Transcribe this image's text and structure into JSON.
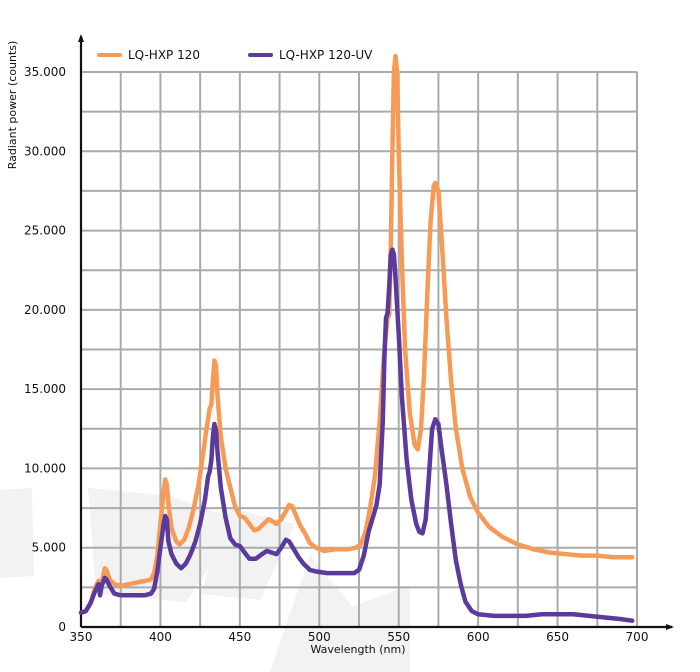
{
  "chart_data": {
    "type": "line",
    "title": "",
    "xlabel": "Wavelength (nm)",
    "ylabel": "Radiant power (counts)",
    "xlim": [
      350,
      700
    ],
    "ylim": [
      0,
      35000
    ],
    "x_ticks": [
      350,
      400,
      450,
      500,
      550,
      600,
      650,
      700
    ],
    "x_tick_labels": [
      "350",
      "400",
      "450",
      "500",
      "550",
      "600",
      "650",
      "700"
    ],
    "y_ticks": [
      0,
      5000,
      10000,
      15000,
      20000,
      25000,
      30000,
      35000
    ],
    "y_tick_labels": [
      "0",
      "5.000",
      "10.000",
      "15.000",
      "20.000",
      "25.000",
      "30.000",
      "35.000"
    ],
    "grid": true,
    "x_grid_step": 25,
    "y_grid_step": 2500,
    "legend_position": "top-left",
    "series": [
      {
        "name": "LQ-HXP 120",
        "color": "#F79A56",
        "points": [
          [
            350,
            900
          ],
          [
            353,
            1000
          ],
          [
            356,
            1500
          ],
          [
            359,
            2500
          ],
          [
            361,
            2900
          ],
          [
            362,
            2700
          ],
          [
            363,
            2800
          ],
          [
            365,
            3700
          ],
          [
            366,
            3600
          ],
          [
            368,
            3000
          ],
          [
            371,
            2700
          ],
          [
            375,
            2600
          ],
          [
            380,
            2700
          ],
          [
            385,
            2800
          ],
          [
            390,
            2900
          ],
          [
            394,
            3000
          ],
          [
            396,
            3400
          ],
          [
            398,
            4500
          ],
          [
            400,
            6500
          ],
          [
            402,
            8500
          ],
          [
            403,
            9300
          ],
          [
            404,
            9000
          ],
          [
            405,
            7800
          ],
          [
            407,
            6200
          ],
          [
            410,
            5400
          ],
          [
            412,
            5200
          ],
          [
            415,
            5500
          ],
          [
            418,
            6300
          ],
          [
            421,
            7500
          ],
          [
            424,
            9000
          ],
          [
            427,
            11000
          ],
          [
            429,
            12500
          ],
          [
            431,
            13800
          ],
          [
            432,
            14000
          ],
          [
            433,
            15500
          ],
          [
            434,
            16800
          ],
          [
            435,
            16500
          ],
          [
            436,
            14500
          ],
          [
            438,
            12000
          ],
          [
            441,
            10000
          ],
          [
            444,
            8800
          ],
          [
            447,
            7600
          ],
          [
            450,
            7000
          ],
          [
            453,
            6900
          ],
          [
            456,
            6500
          ],
          [
            459,
            6100
          ],
          [
            462,
            6200
          ],
          [
            465,
            6500
          ],
          [
            468,
            6800
          ],
          [
            470,
            6700
          ],
          [
            473,
            6500
          ],
          [
            476,
            6800
          ],
          [
            479,
            7300
          ],
          [
            481,
            7700
          ],
          [
            483,
            7600
          ],
          [
            485,
            7100
          ],
          [
            488,
            6400
          ],
          [
            491,
            5900
          ],
          [
            494,
            5300
          ],
          [
            498,
            5000
          ],
          [
            503,
            4800
          ],
          [
            510,
            4900
          ],
          [
            518,
            4900
          ],
          [
            523,
            5000
          ],
          [
            526,
            5200
          ],
          [
            529,
            6000
          ],
          [
            532,
            7500
          ],
          [
            535,
            9500
          ],
          [
            538,
            13000
          ],
          [
            541,
            17500
          ],
          [
            543,
            19500
          ],
          [
            544,
            19700
          ],
          [
            545,
            24000
          ],
          [
            546,
            30000
          ],
          [
            547,
            35000
          ],
          [
            548,
            36000
          ],
          [
            549,
            35000
          ],
          [
            550,
            30000
          ],
          [
            552,
            23000
          ],
          [
            554,
            17500
          ],
          [
            557,
            13500
          ],
          [
            560,
            11500
          ],
          [
            562,
            11200
          ],
          [
            564,
            12500
          ],
          [
            566,
            16000
          ],
          [
            568,
            21000
          ],
          [
            570,
            25500
          ],
          [
            572,
            27800
          ],
          [
            573,
            28000
          ],
          [
            575,
            27500
          ],
          [
            577,
            24500
          ],
          [
            580,
            19500
          ],
          [
            583,
            15500
          ],
          [
            586,
            12500
          ],
          [
            590,
            10000
          ],
          [
            595,
            8200
          ],
          [
            600,
            7200
          ],
          [
            607,
            6300
          ],
          [
            615,
            5700
          ],
          [
            625,
            5200
          ],
          [
            635,
            4900
          ],
          [
            645,
            4700
          ],
          [
            655,
            4600
          ],
          [
            665,
            4500
          ],
          [
            675,
            4500
          ],
          [
            685,
            4400
          ],
          [
            690,
            4400
          ],
          [
            697,
            4400
          ]
        ]
      },
      {
        "name": "LQ-HXP 120-UV",
        "color": "#5B3A9B",
        "points": [
          [
            350,
            900
          ],
          [
            353,
            1000
          ],
          [
            356,
            1500
          ],
          [
            359,
            2300
          ],
          [
            361,
            2700
          ],
          [
            362,
            2000
          ],
          [
            363,
            2600
          ],
          [
            365,
            3100
          ],
          [
            366,
            3000
          ],
          [
            368,
            2600
          ],
          [
            371,
            2100
          ],
          [
            375,
            2000
          ],
          [
            380,
            2000
          ],
          [
            385,
            2000
          ],
          [
            390,
            2000
          ],
          [
            394,
            2100
          ],
          [
            396,
            2400
          ],
          [
            398,
            3500
          ],
          [
            400,
            5000
          ],
          [
            402,
            6500
          ],
          [
            403,
            7000
          ],
          [
            404,
            6800
          ],
          [
            405,
            5400
          ],
          [
            407,
            4600
          ],
          [
            410,
            4000
          ],
          [
            413,
            3700
          ],
          [
            416,
            4000
          ],
          [
            419,
            4600
          ],
          [
            422,
            5400
          ],
          [
            425,
            6500
          ],
          [
            428,
            8000
          ],
          [
            430,
            9500
          ],
          [
            431,
            9800
          ],
          [
            432,
            10500
          ],
          [
            433,
            12000
          ],
          [
            434,
            12800
          ],
          [
            435,
            12400
          ],
          [
            436,
            11000
          ],
          [
            438,
            8800
          ],
          [
            441,
            6900
          ],
          [
            444,
            5600
          ],
          [
            447,
            5200
          ],
          [
            450,
            5100
          ],
          [
            453,
            4700
          ],
          [
            456,
            4300
          ],
          [
            460,
            4300
          ],
          [
            464,
            4600
          ],
          [
            467,
            4800
          ],
          [
            470,
            4700
          ],
          [
            473,
            4600
          ],
          [
            476,
            5000
          ],
          [
            479,
            5500
          ],
          [
            481,
            5400
          ],
          [
            484,
            4900
          ],
          [
            487,
            4400
          ],
          [
            490,
            4000
          ],
          [
            494,
            3600
          ],
          [
            498,
            3500
          ],
          [
            505,
            3400
          ],
          [
            515,
            3400
          ],
          [
            522,
            3400
          ],
          [
            525,
            3600
          ],
          [
            528,
            4500
          ],
          [
            531,
            6000
          ],
          [
            534,
            7000
          ],
          [
            536,
            7700
          ],
          [
            538,
            9000
          ],
          [
            540,
            13000
          ],
          [
            541,
            17000
          ],
          [
            542,
            19500
          ],
          [
            543,
            19800
          ],
          [
            544,
            21500
          ],
          [
            545,
            23500
          ],
          [
            546,
            23800
          ],
          [
            547,
            23500
          ],
          [
            548,
            22000
          ],
          [
            550,
            18500
          ],
          [
            552,
            14500
          ],
          [
            555,
            10500
          ],
          [
            558,
            8000
          ],
          [
            561,
            6500
          ],
          [
            563,
            6000
          ],
          [
            565,
            5900
          ],
          [
            567,
            6800
          ],
          [
            569,
            9500
          ],
          [
            571,
            12500
          ],
          [
            573,
            13100
          ],
          [
            575,
            12800
          ],
          [
            577,
            11200
          ],
          [
            580,
            9000
          ],
          [
            583,
            6500
          ],
          [
            586,
            4200
          ],
          [
            589,
            2700
          ],
          [
            592,
            1600
          ],
          [
            596,
            1000
          ],
          [
            600,
            800
          ],
          [
            610,
            700
          ],
          [
            620,
            700
          ],
          [
            630,
            700
          ],
          [
            640,
            800
          ],
          [
            650,
            800
          ],
          [
            660,
            800
          ],
          [
            670,
            700
          ],
          [
            680,
            600
          ],
          [
            690,
            500
          ],
          [
            697,
            400
          ]
        ]
      }
    ]
  }
}
